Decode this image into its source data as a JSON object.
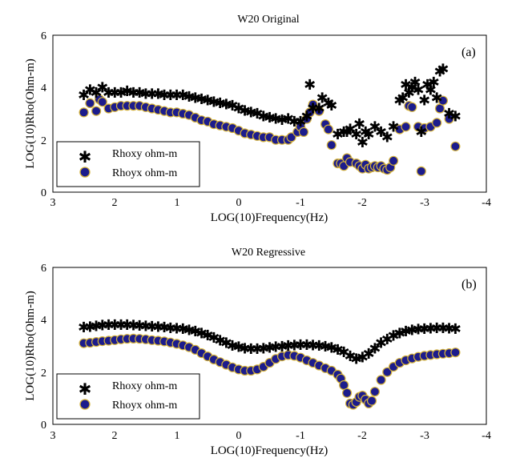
{
  "chart_data": [
    {
      "type": "scatter",
      "panel_label": "(a)",
      "title": "W20 Original",
      "xlabel": "LOG(10)Frequency(Hz)",
      "ylabel": "LOG(10)Rho(Ohm-m)",
      "xlim": [
        3,
        -4
      ],
      "ylim": [
        0,
        6
      ],
      "xticks": [
        "3",
        "2",
        "1",
        "0",
        "-1",
        "-2",
        "-3",
        "-4"
      ],
      "yticks": [
        "0",
        "2",
        "4",
        "6"
      ],
      "legend_position": "bottom-left",
      "series": [
        {
          "name": "Rhoxy ohm-m",
          "marker": "asterisk",
          "color": "#2ca85a",
          "x": [
            2.5,
            2.4,
            2.3,
            2.2,
            2.1,
            2.0,
            1.9,
            1.8,
            1.7,
            1.6,
            1.5,
            1.4,
            1.3,
            1.2,
            1.1,
            1.0,
            0.9,
            0.8,
            0.7,
            0.6,
            0.5,
            0.4,
            0.3,
            0.2,
            0.1,
            0.0,
            -0.1,
            -0.2,
            -0.3,
            -0.4,
            -0.5,
            -0.6,
            -0.7,
            -0.8,
            -0.9,
            -1.0,
            -1.1,
            -1.15,
            -1.2,
            -1.3,
            -1.35,
            -1.45,
            -1.5,
            -1.6,
            -1.7,
            -1.75,
            -1.8,
            -1.9,
            -1.95,
            -2.0,
            -2.05,
            -2.1,
            -2.2,
            -2.3,
            -2.4,
            -2.5,
            -2.6,
            -2.65,
            -2.7,
            -2.75,
            -2.8,
            -2.85,
            -2.9,
            -2.95,
            -3.0,
            -3.05,
            -3.1,
            -3.15,
            -3.2,
            -3.25,
            -3.3,
            -3.4,
            -3.5
          ],
          "y": [
            3.7,
            3.9,
            3.8,
            4.0,
            3.8,
            3.8,
            3.8,
            3.85,
            3.8,
            3.8,
            3.75,
            3.75,
            3.75,
            3.7,
            3.7,
            3.7,
            3.7,
            3.65,
            3.6,
            3.55,
            3.5,
            3.45,
            3.4,
            3.35,
            3.3,
            3.2,
            3.1,
            3.05,
            3.0,
            2.9,
            2.85,
            2.8,
            2.75,
            2.8,
            2.7,
            2.7,
            2.9,
            4.1,
            3.2,
            3.2,
            3.6,
            3.4,
            3.3,
            2.2,
            2.3,
            2.3,
            2.4,
            2.2,
            2.6,
            1.9,
            2.3,
            2.2,
            2.5,
            2.3,
            2.1,
            2.5,
            3.5,
            3.6,
            4.1,
            3.8,
            4.0,
            4.2,
            3.9,
            2.3,
            3.5,
            4.1,
            3.9,
            4.2,
            3.6,
            4.6,
            4.7,
            3.0,
            2.9
          ]
        },
        {
          "name": "Rhoyx ohm-m",
          "marker": "circle",
          "color": "#1c1c8c",
          "x": [
            2.5,
            2.4,
            2.3,
            2.25,
            2.2,
            2.1,
            2.0,
            1.9,
            1.8,
            1.7,
            1.6,
            1.5,
            1.4,
            1.3,
            1.2,
            1.1,
            1.0,
            0.9,
            0.8,
            0.7,
            0.6,
            0.5,
            0.4,
            0.3,
            0.2,
            0.1,
            0.0,
            -0.1,
            -0.2,
            -0.3,
            -0.4,
            -0.5,
            -0.6,
            -0.7,
            -0.8,
            -0.85,
            -0.95,
            -1.0,
            -1.05,
            -1.1,
            -1.15,
            -1.2,
            -1.3,
            -1.4,
            -1.45,
            -1.5,
            -1.6,
            -1.65,
            -1.7,
            -1.75,
            -1.8,
            -1.9,
            -1.95,
            -2.0,
            -2.05,
            -2.1,
            -2.15,
            -2.2,
            -2.25,
            -2.3,
            -2.35,
            -2.4,
            -2.45,
            -2.5,
            -2.6,
            -2.7,
            -2.75,
            -2.8,
            -2.9,
            -2.95,
            -3.0,
            -3.1,
            -3.2,
            -3.25,
            -3.3,
            -3.4,
            -3.5
          ],
          "y": [
            3.05,
            3.4,
            3.1,
            3.55,
            3.45,
            3.2,
            3.25,
            3.3,
            3.3,
            3.3,
            3.3,
            3.25,
            3.2,
            3.15,
            3.1,
            3.05,
            3.05,
            3.0,
            2.95,
            2.85,
            2.75,
            2.7,
            2.6,
            2.55,
            2.5,
            2.45,
            2.35,
            2.25,
            2.2,
            2.15,
            2.1,
            2.1,
            2.0,
            2.0,
            2.0,
            2.1,
            2.3,
            2.5,
            2.3,
            2.8,
            3.05,
            3.35,
            3.1,
            2.6,
            2.4,
            1.8,
            1.1,
            1.1,
            1.0,
            1.3,
            1.15,
            1.1,
            1.0,
            0.9,
            1.05,
            0.9,
            0.95,
            1.0,
            0.95,
            1.0,
            0.9,
            0.85,
            0.95,
            1.2,
            2.4,
            2.5,
            3.3,
            3.25,
            2.5,
            0.8,
            2.45,
            2.5,
            2.65,
            3.2,
            3.5,
            2.8,
            1.75
          ]
        }
      ]
    },
    {
      "type": "scatter",
      "panel_label": "(b)",
      "title": "W20 Regressive",
      "xlabel": "LOG(10)Frequency(Hz)",
      "ylabel": "LOG(10)Rho(Ohm-m)",
      "xlim": [
        3,
        -4
      ],
      "ylim": [
        0,
        6
      ],
      "xticks": [
        "3",
        "2",
        "1",
        "0",
        "-1",
        "-2",
        "-3",
        "-4"
      ],
      "yticks": [
        "0",
        "2",
        "4",
        "6"
      ],
      "legend_position": "bottom-left",
      "series": [
        {
          "name": "Rhoxy ohm-m",
          "marker": "asterisk",
          "color": "#2ca85a",
          "x": [
            2.5,
            2.4,
            2.3,
            2.2,
            2.1,
            2.0,
            1.9,
            1.8,
            1.7,
            1.6,
            1.5,
            1.4,
            1.3,
            1.2,
            1.1,
            1.0,
            0.9,
            0.8,
            0.7,
            0.6,
            0.5,
            0.4,
            0.3,
            0.2,
            0.1,
            0.0,
            -0.1,
            -0.2,
            -0.3,
            -0.4,
            -0.5,
            -0.6,
            -0.7,
            -0.8,
            -0.9,
            -1.0,
            -1.1,
            -1.2,
            -1.3,
            -1.4,
            -1.5,
            -1.6,
            -1.7,
            -1.8,
            -1.9,
            -2.0,
            -2.1,
            -2.2,
            -2.3,
            -2.4,
            -2.5,
            -2.6,
            -2.7,
            -2.8,
            -2.9,
            -3.0,
            -3.1,
            -3.2,
            -3.3,
            -3.4,
            -3.5
          ],
          "y": [
            3.7,
            3.72,
            3.75,
            3.78,
            3.8,
            3.8,
            3.8,
            3.8,
            3.78,
            3.77,
            3.75,
            3.73,
            3.72,
            3.7,
            3.68,
            3.66,
            3.64,
            3.6,
            3.55,
            3.48,
            3.4,
            3.3,
            3.2,
            3.1,
            3.0,
            2.95,
            2.9,
            2.88,
            2.88,
            2.9,
            2.92,
            2.95,
            2.97,
            3.0,
            3.02,
            3.03,
            3.03,
            3.02,
            3.0,
            2.97,
            2.92,
            2.85,
            2.75,
            2.6,
            2.5,
            2.55,
            2.7,
            2.9,
            3.1,
            3.25,
            3.38,
            3.48,
            3.55,
            3.6,
            3.63,
            3.65,
            3.66,
            3.67,
            3.67,
            3.66,
            3.65
          ]
        },
        {
          "name": "Rhoyx ohm-m",
          "marker": "circle",
          "color": "#1c1c8c",
          "x": [
            2.5,
            2.4,
            2.3,
            2.2,
            2.1,
            2.0,
            1.9,
            1.8,
            1.7,
            1.6,
            1.5,
            1.4,
            1.3,
            1.2,
            1.1,
            1.0,
            0.9,
            0.8,
            0.7,
            0.6,
            0.5,
            0.4,
            0.3,
            0.2,
            0.1,
            0.0,
            -0.1,
            -0.2,
            -0.3,
            -0.4,
            -0.5,
            -0.6,
            -0.7,
            -0.8,
            -0.9,
            -1.0,
            -1.1,
            -1.2,
            -1.3,
            -1.4,
            -1.5,
            -1.6,
            -1.65,
            -1.7,
            -1.75,
            -1.8,
            -1.85,
            -1.9,
            -1.95,
            -2.0,
            -2.05,
            -2.1,
            -2.15,
            -2.2,
            -2.3,
            -2.4,
            -2.5,
            -2.6,
            -2.7,
            -2.8,
            -2.9,
            -3.0,
            -3.1,
            -3.2,
            -3.3,
            -3.4,
            -3.5
          ],
          "y": [
            3.1,
            3.12,
            3.15,
            3.18,
            3.2,
            3.22,
            3.25,
            3.27,
            3.28,
            3.27,
            3.25,
            3.22,
            3.2,
            3.17,
            3.13,
            3.08,
            3.02,
            2.95,
            2.85,
            2.72,
            2.6,
            2.48,
            2.38,
            2.28,
            2.18,
            2.1,
            2.05,
            2.05,
            2.1,
            2.2,
            2.35,
            2.5,
            2.6,
            2.65,
            2.62,
            2.55,
            2.45,
            2.35,
            2.25,
            2.15,
            2.05,
            1.9,
            1.75,
            1.5,
            1.2,
            0.8,
            0.75,
            0.85,
            1.05,
            1.1,
            0.95,
            0.8,
            0.9,
            1.25,
            1.7,
            2.0,
            2.2,
            2.35,
            2.45,
            2.52,
            2.58,
            2.62,
            2.65,
            2.68,
            2.7,
            2.72,
            2.75
          ]
        }
      ]
    }
  ]
}
